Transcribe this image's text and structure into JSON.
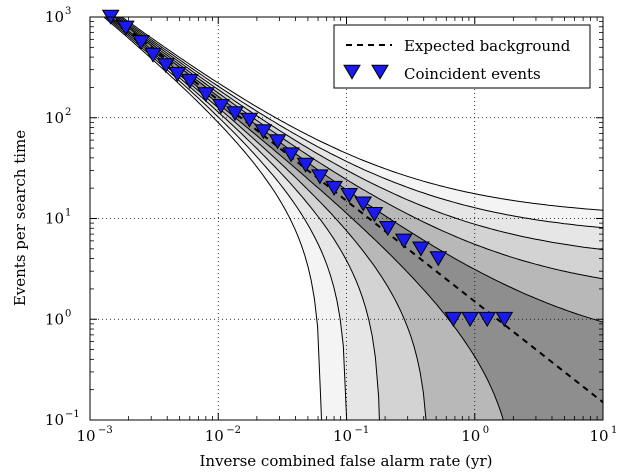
{
  "chart_data": {
    "type": "line",
    "title": "",
    "xlabel": "Inverse combined false alarm rate (yr)",
    "ylabel": "Events per search time",
    "xscale": "log",
    "yscale": "log",
    "xlim": [
      0.001,
      10
    ],
    "ylim": [
      0.1,
      1000
    ],
    "grid": true,
    "legend_position": "top-right",
    "x_ticks": [
      {
        "base": "10",
        "exp": "−3"
      },
      {
        "base": "10",
        "exp": "−2"
      },
      {
        "base": "10",
        "exp": "−1"
      },
      {
        "base": "10",
        "exp": "0"
      },
      {
        "base": "10",
        "exp": "1"
      }
    ],
    "y_ticks": [
      {
        "base": "10",
        "exp": "−1"
      },
      {
        "base": "10",
        "exp": "0"
      },
      {
        "base": "10",
        "exp": "1"
      },
      {
        "base": "10",
        "exp": "2"
      },
      {
        "base": "10",
        "exp": "3"
      }
    ],
    "series": [
      {
        "name": "Expected background",
        "style": "dashed-line",
        "color": "#000000",
        "x": [
          0.001,
          0.002,
          0.005,
          0.01,
          0.02,
          0.05,
          0.1,
          0.2,
          0.5,
          1,
          2,
          5,
          10
        ],
        "y": [
          1500,
          750,
          300,
          150,
          75,
          30,
          15,
          7.5,
          3,
          1.5,
          0.75,
          0.3,
          0.15
        ]
      },
      {
        "name": "Coincident events",
        "style": "markers-triangle-down",
        "color": "#1a1aee",
        "x": [
          0.00145,
          0.0019,
          0.0025,
          0.0031,
          0.0039,
          0.0048,
          0.006,
          0.008,
          0.0105,
          0.0135,
          0.0175,
          0.0225,
          0.029,
          0.037,
          0.048,
          0.062,
          0.08,
          0.105,
          0.135,
          0.165,
          0.21,
          0.28,
          0.38,
          0.52,
          0.68,
          0.92,
          1.25,
          1.7
        ],
        "y": [
          1000,
          780,
          560,
          420,
          330,
          270,
          230,
          170,
          130,
          110,
          95,
          73,
          58,
          43,
          34,
          26,
          20,
          17,
          14,
          11,
          8,
          6,
          5,
          4,
          1,
          1,
          1,
          1
        ]
      }
    ],
    "confidence_bands": [
      {
        "sigma": 5,
        "fill": "#f4f4f4"
      },
      {
        "sigma": 4,
        "fill": "#e6e6e6"
      },
      {
        "sigma": 3,
        "fill": "#d3d3d3"
      },
      {
        "sigma": 2,
        "fill": "#b8b8b8"
      },
      {
        "sigma": 1,
        "fill": "#8e8e8e"
      }
    ]
  }
}
